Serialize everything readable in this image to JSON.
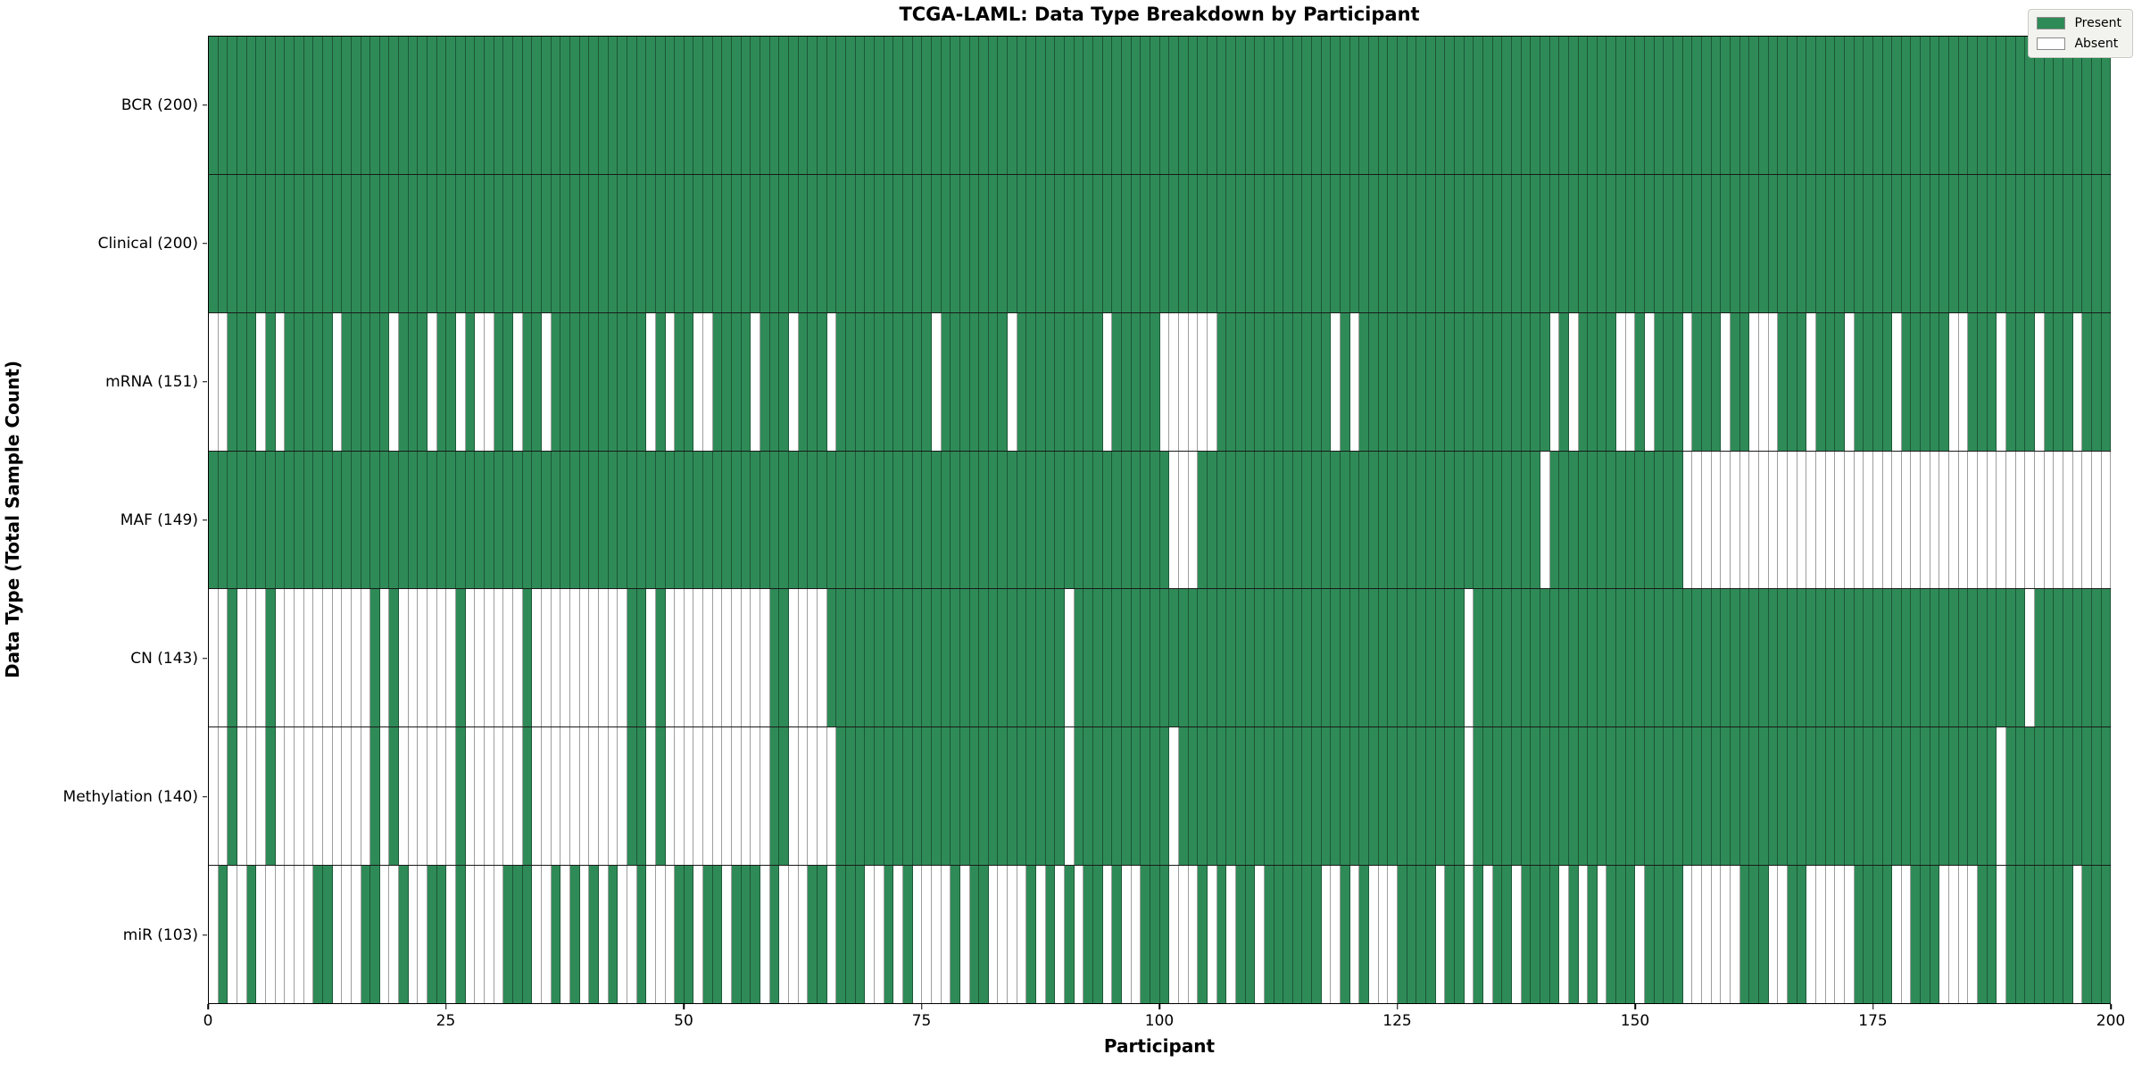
{
  "title": "TCGA-LAML: Data Type Breakdown by Participant",
  "chart_data": {
    "type": "heatmap",
    "title": "TCGA-LAML: Data Type Breakdown by Participant",
    "xlabel": "Participant",
    "ylabel": "Data Type (Total Sample Count)",
    "x_axis": {
      "range": [
        0,
        200
      ],
      "ticks": [
        0,
        25,
        50,
        75,
        100,
        125,
        150,
        175,
        200
      ],
      "n_participants": 200
    },
    "colors": {
      "present": "#2E8B57",
      "absent": "#ffffff",
      "cell_edge": "rgba(0,0,0,0.38)",
      "row_divider": "#1a1a1a"
    },
    "legend": [
      {
        "label": "Present",
        "color": "#2E8B57"
      },
      {
        "label": "Absent",
        "color": "#ffffff"
      }
    ],
    "legend_position": "upper right",
    "grid": false,
    "rows": [
      {
        "label": "BCR (200)",
        "data_type": "BCR",
        "total_samples": 200,
        "presence": "11111111111111111111111111111111111111111111111111111111111111111111111111111111111111111111111111111111111111111111111111111111111111111111111111111111111111111111111111111111111111111111111111111111"
      },
      {
        "label": "Clinical (200)",
        "data_type": "Clinical",
        "total_samples": 200,
        "presence": "11111111111111111111111111111111111111111111111111111111111111111111111111111111111111111111111111111111111111111111111111111111111111111111111111111111111111111111111111111111111111111111111111111111"
      },
      {
        "label": "mRNA (151)",
        "data_type": "mRNA",
        "total_samples": 151,
        "presence": "00111010111110111110111011010011011011111111110101100111101110111011111111110111111101111111110111110000001111111111110101111111111111111111101011110010111011101100011101110111101111100111011101110111"
      },
      {
        "label": "MAF (149)",
        "data_type": "MAF",
        "total_samples": 149,
        "presence": "11111111111111111111111111111111111111111111111111111111111111111111111111111111111111111111111111111000111111111111111111111111111111111111011111111111111000000000000000000000000000000000000000000000"
      },
      {
        "label": "CN (143)",
        "data_type": "CN",
        "total_samples": 143,
        "presence": "00100010000000000101000000100000010000000000110100000000000110000111111111111111111111111101111111111111111111111111111111111111111101111111111111111111111111111111111111111111111111111111111011111111"
      },
      {
        "label": "Methylation (140)",
        "data_type": "Methylation",
        "total_samples": 140,
        "presence": "00100010000000000101000000100000010000000000110100000000000110000011111111111111111111111101111111111011111111111111111111111111111101111111111111111111111111111111111111111111111111111111011111111111"
      },
      {
        "label": "miR (103)",
        "data_type": "miR",
        "total_samples": 103,
        "presence": "01001000000110001100100110100001110010101010010001101101110100011011100101000010110000101010110100111000101011011111100101000111101101011011110101011101111000000111001100000111100111000011011111110111"
      }
    ]
  }
}
